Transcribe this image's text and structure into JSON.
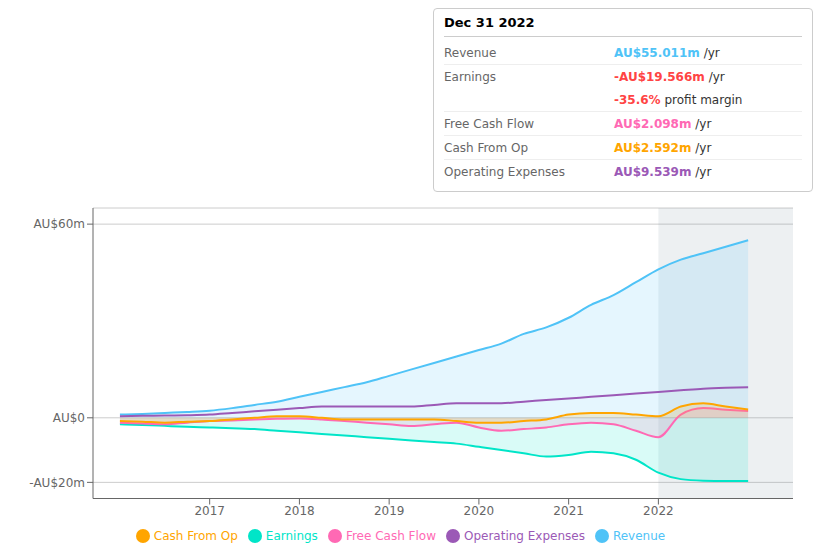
{
  "chart_data": {
    "type": "area",
    "title": "Dec 31 2022",
    "x": [
      2016.0,
      2016.25,
      2016.5,
      2016.75,
      2017.0,
      2017.25,
      2017.5,
      2017.75,
      2018.0,
      2018.25,
      2018.5,
      2018.75,
      2019.0,
      2019.25,
      2019.5,
      2019.75,
      2020.0,
      2020.25,
      2020.5,
      2020.75,
      2021.0,
      2021.25,
      2021.5,
      2021.75,
      2022.0,
      2022.25,
      2022.5,
      2022.75,
      2023.0
    ],
    "xlim": [
      2015.7,
      2023.5
    ],
    "xticks": [
      2017,
      2018,
      2019,
      2020,
      2021,
      2022
    ],
    "ylim": [
      -25,
      65
    ],
    "yticks": [
      {
        "value": -20,
        "label": "-AU$20m"
      },
      {
        "value": 0,
        "label": "AU$0"
      },
      {
        "value": 60,
        "label": "AU$60m"
      }
    ],
    "grid": true,
    "legend": "bottom",
    "highlight_x": [
      2022.0,
      2023.5
    ],
    "series": [
      {
        "name": "Revenue",
        "color": "#4fc3f7",
        "type": "area",
        "values": [
          1.0,
          1.2,
          1.5,
          1.8,
          2.2,
          3.0,
          4.0,
          5.0,
          6.5,
          8.0,
          9.5,
          11.0,
          13.0,
          15.0,
          17.0,
          19.0,
          21.0,
          23.0,
          26.0,
          28.0,
          31.0,
          35.0,
          38.0,
          42.0,
          46.0,
          49.0,
          51.0,
          53.0,
          55.0
        ]
      },
      {
        "name": "Earnings",
        "color": "#00e5c8",
        "type": "area",
        "values": [
          -2.0,
          -2.2,
          -2.5,
          -2.8,
          -3.0,
          -3.2,
          -3.5,
          -4.0,
          -4.5,
          -5.0,
          -5.5,
          -6.0,
          -6.5,
          -7.0,
          -7.5,
          -8.0,
          -9.0,
          -10.0,
          -11.0,
          -12.0,
          -11.5,
          -10.5,
          -11.0,
          -13.0,
          -17.0,
          -19.0,
          -19.5,
          -19.6,
          -19.6
        ]
      },
      {
        "name": "Free Cash Flow",
        "color": "#ff69b4",
        "type": "area",
        "values": [
          -1.5,
          -1.8,
          -2.0,
          -1.5,
          -1.0,
          -0.8,
          -0.5,
          -0.3,
          -0.2,
          -0.5,
          -1.0,
          -1.5,
          -2.0,
          -2.5,
          -2.0,
          -1.5,
          -3.0,
          -4.0,
          -3.5,
          -3.0,
          -2.0,
          -1.5,
          -2.0,
          -4.0,
          -6.0,
          1.0,
          3.0,
          2.5,
          2.1
        ]
      },
      {
        "name": "Cash From Op",
        "color": "#ffa500",
        "type": "area",
        "values": [
          -1.0,
          -1.2,
          -1.5,
          -1.2,
          -1.0,
          -0.5,
          0.0,
          0.5,
          0.5,
          0.0,
          -0.5,
          -0.5,
          -0.5,
          -0.5,
          -0.5,
          -1.0,
          -1.5,
          -1.5,
          -1.0,
          -0.5,
          1.0,
          1.5,
          1.5,
          1.0,
          0.5,
          3.5,
          4.5,
          3.5,
          2.6
        ]
      },
      {
        "name": "Operating Expenses",
        "color": "#9b59b6",
        "type": "line",
        "values": [
          0.5,
          0.6,
          0.7,
          0.8,
          1.0,
          1.5,
          2.0,
          2.5,
          3.0,
          3.5,
          3.5,
          3.5,
          3.5,
          3.5,
          4.0,
          4.5,
          4.5,
          4.5,
          5.0,
          5.5,
          6.0,
          6.5,
          7.0,
          7.5,
          8.0,
          8.5,
          9.0,
          9.3,
          9.5
        ]
      }
    ],
    "annotations": [
      {
        "label": "Revenue",
        "text": "AU$55.011m",
        "suffix": " /yr",
        "color": "#4fc3f7"
      },
      {
        "label": "Earnings",
        "text": "-AU$19.566m",
        "suffix": " /yr",
        "color": "#ff4444"
      },
      {
        "text": "-35.6%",
        "suffix": " profit margin",
        "color": "#ff4444"
      },
      {
        "label": "Free Cash Flow",
        "text": "AU$2.098m",
        "suffix": " /yr",
        "color": "#ff69b4"
      },
      {
        "label": "Cash From Op",
        "text": "AU$2.592m",
        "suffix": " /yr",
        "color": "#ffa500"
      },
      {
        "label": "Operating Expenses",
        "text": "AU$9.539m",
        "suffix": " /yr",
        "color": "#9b59b6"
      }
    ]
  }
}
